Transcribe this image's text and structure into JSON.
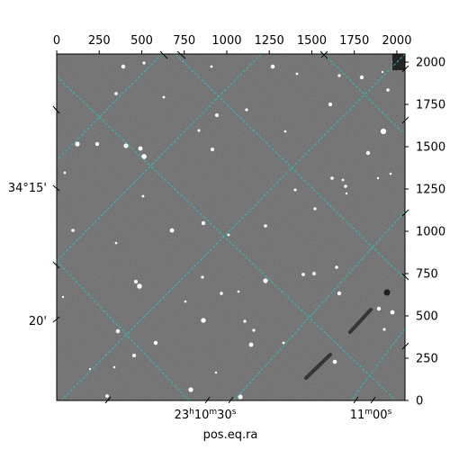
{
  "chart_data": {
    "type": "astronomical-image",
    "xlabel": "pos.eq.ra",
    "top_x_ticks": [
      "0",
      "250",
      "500",
      "750",
      "1000",
      "1250",
      "1500",
      "1750",
      "2000"
    ],
    "top_x_values": [
      0,
      250,
      500,
      750,
      1000,
      1250,
      1500,
      1750,
      2000
    ],
    "right_y_ticks": [
      "0",
      "250",
      "500",
      "750",
      "1000",
      "1250",
      "1500",
      "1750",
      "2000"
    ],
    "right_y_values": [
      0,
      250,
      500,
      750,
      1000,
      1250,
      1500,
      1750,
      2000
    ],
    "left_dec_ticks": [
      "34°15'",
      "20'"
    ],
    "bottom_ra_ticks": [
      {
        "h": "23",
        "m": "10",
        "s": "30"
      },
      {
        "m": "11",
        "s": "00"
      }
    ],
    "pixel_range": {
      "x": [
        0,
        2048
      ],
      "y": [
        0,
        2048
      ]
    },
    "grid": true,
    "grid_color": "#20c8c8",
    "colormap": "gray"
  }
}
